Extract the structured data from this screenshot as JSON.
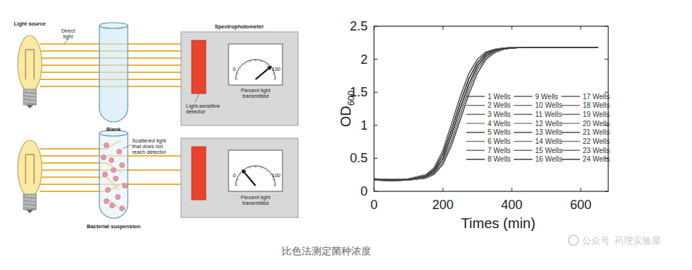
{
  "chart_data": {
    "type": "line",
    "x_label": "Times (min)",
    "y_label": {
      "text": "OD",
      "subscript": "600"
    },
    "x": [
      0,
      50,
      100,
      150,
      175,
      200,
      225,
      250,
      275,
      300,
      325,
      350,
      375,
      400,
      450,
      500,
      550,
      600,
      650
    ],
    "xlim": [
      0,
      680
    ],
    "ylim": [
      0,
      2.5
    ],
    "xticks": [
      0,
      200,
      400,
      600
    ],
    "yticks": [
      0,
      0.5,
      1,
      1.5,
      2,
      2.5
    ],
    "legend": "right",
    "series": [
      {
        "name": "1 Wells",
        "color": "#4d4d4d",
        "values": [
          0.18,
          0.17,
          0.18,
          0.22,
          0.3,
          0.5,
          0.85,
          1.25,
          1.62,
          1.9,
          2.06,
          2.13,
          2.16,
          2.17,
          2.18,
          2.18,
          2.18,
          2.18,
          2.18
        ]
      },
      {
        "name": "2 Wells",
        "color": "#6e6e6e",
        "values": [
          0.19,
          0.18,
          0.19,
          0.25,
          0.36,
          0.62,
          1.02,
          1.43,
          1.78,
          2.0,
          2.11,
          2.15,
          2.17,
          2.18,
          2.18,
          2.18,
          2.18,
          2.18,
          2.18
        ]
      },
      {
        "name": "3 Wells",
        "color": "#5a5a5a",
        "values": [
          0.17,
          0.16,
          0.17,
          0.2,
          0.26,
          0.41,
          0.7,
          1.08,
          1.47,
          1.79,
          2.0,
          2.1,
          2.15,
          2.17,
          2.18,
          2.18,
          2.18,
          2.18,
          2.18
        ]
      },
      {
        "name": "4 Wells",
        "color": "#808080",
        "values": [
          0.18,
          0.17,
          0.18,
          0.23,
          0.33,
          0.56,
          0.93,
          1.34,
          1.7,
          1.95,
          2.09,
          2.14,
          2.16,
          2.17,
          2.18,
          2.18,
          2.18,
          2.18,
          2.18
        ]
      },
      {
        "name": "5 Wells",
        "color": "#3f3f3f",
        "values": [
          0.18,
          0.17,
          0.17,
          0.21,
          0.28,
          0.45,
          0.77,
          1.16,
          1.55,
          1.85,
          2.03,
          2.12,
          2.15,
          2.17,
          2.18,
          2.18,
          2.18,
          2.18,
          2.18
        ]
      },
      {
        "name": "6 Wells",
        "color": "#737373",
        "values": [
          0.18,
          0.17,
          0.18,
          0.22,
          0.3,
          0.5,
          0.85,
          1.25,
          1.62,
          1.9,
          2.06,
          2.13,
          2.16,
          2.17,
          2.18,
          2.18,
          2.18,
          2.18,
          2.18
        ]
      },
      {
        "name": "7 Wells",
        "color": "#606060",
        "values": [
          0.19,
          0.18,
          0.19,
          0.25,
          0.36,
          0.62,
          1.02,
          1.43,
          1.78,
          2.0,
          2.11,
          2.15,
          2.17,
          2.18,
          2.18,
          2.18,
          2.18,
          2.18,
          2.18
        ]
      },
      {
        "name": "8 Wells",
        "color": "#2b2b2b",
        "values": [
          0.17,
          0.16,
          0.17,
          0.2,
          0.26,
          0.41,
          0.7,
          1.08,
          1.47,
          1.79,
          2.0,
          2.1,
          2.15,
          2.17,
          2.18,
          2.18,
          2.18,
          2.18,
          2.18
        ]
      },
      {
        "name": "9 Wells",
        "color": "#4d4d4d",
        "values": [
          0.18,
          0.17,
          0.18,
          0.23,
          0.33,
          0.56,
          0.93,
          1.34,
          1.7,
          1.95,
          2.09,
          2.14,
          2.16,
          2.17,
          2.18,
          2.18,
          2.18,
          2.18,
          2.18
        ]
      },
      {
        "name": "10 Wells",
        "color": "#6e6e6e",
        "values": [
          0.18,
          0.17,
          0.17,
          0.21,
          0.28,
          0.45,
          0.77,
          1.16,
          1.55,
          1.85,
          2.03,
          2.12,
          2.15,
          2.17,
          2.18,
          2.18,
          2.18,
          2.18,
          2.18
        ]
      },
      {
        "name": "11 Wells",
        "color": "#5a5a5a",
        "values": [
          0.18,
          0.17,
          0.18,
          0.22,
          0.3,
          0.5,
          0.85,
          1.25,
          1.62,
          1.9,
          2.06,
          2.13,
          2.16,
          2.17,
          2.18,
          2.18,
          2.18,
          2.18,
          2.18
        ]
      },
      {
        "name": "12 Wells",
        "color": "#808080",
        "values": [
          0.19,
          0.18,
          0.19,
          0.25,
          0.36,
          0.62,
          1.02,
          1.43,
          1.78,
          2.0,
          2.11,
          2.15,
          2.17,
          2.18,
          2.18,
          2.18,
          2.18,
          2.18,
          2.18
        ]
      },
      {
        "name": "13 Wells",
        "color": "#3f3f3f",
        "values": [
          0.17,
          0.16,
          0.17,
          0.2,
          0.26,
          0.41,
          0.7,
          1.08,
          1.47,
          1.79,
          2.0,
          2.1,
          2.15,
          2.17,
          2.18,
          2.18,
          2.18,
          2.18,
          2.18
        ]
      },
      {
        "name": "14 Wells",
        "color": "#737373",
        "values": [
          0.18,
          0.17,
          0.18,
          0.23,
          0.33,
          0.56,
          0.93,
          1.34,
          1.7,
          1.95,
          2.09,
          2.14,
          2.16,
          2.17,
          2.18,
          2.18,
          2.18,
          2.18,
          2.18
        ]
      },
      {
        "name": "15 Wells",
        "color": "#606060",
        "values": [
          0.18,
          0.17,
          0.17,
          0.21,
          0.28,
          0.45,
          0.77,
          1.16,
          1.55,
          1.85,
          2.03,
          2.12,
          2.15,
          2.17,
          2.18,
          2.18,
          2.18,
          2.18,
          2.18
        ]
      },
      {
        "name": "16 Wells",
        "color": "#2b2b2b",
        "values": [
          0.18,
          0.17,
          0.18,
          0.22,
          0.3,
          0.5,
          0.85,
          1.25,
          1.62,
          1.9,
          2.06,
          2.13,
          2.16,
          2.17,
          2.18,
          2.18,
          2.18,
          2.18,
          2.18
        ]
      },
      {
        "name": "17 Wells",
        "color": "#4d4d4d",
        "values": [
          0.19,
          0.18,
          0.19,
          0.25,
          0.36,
          0.62,
          1.02,
          1.43,
          1.78,
          2.0,
          2.11,
          2.15,
          2.17,
          2.18,
          2.18,
          2.18,
          2.18,
          2.18,
          2.18
        ]
      },
      {
        "name": "18 Wells",
        "color": "#6e6e6e",
        "values": [
          0.17,
          0.16,
          0.17,
          0.2,
          0.26,
          0.41,
          0.7,
          1.08,
          1.47,
          1.79,
          2.0,
          2.1,
          2.15,
          2.17,
          2.18,
          2.18,
          2.18,
          2.18,
          2.18
        ]
      },
      {
        "name": "19 Wells",
        "color": "#5a5a5a",
        "values": [
          0.18,
          0.17,
          0.18,
          0.23,
          0.33,
          0.56,
          0.93,
          1.34,
          1.7,
          1.95,
          2.09,
          2.14,
          2.16,
          2.17,
          2.18,
          2.18,
          2.18,
          2.18,
          2.18
        ]
      },
      {
        "name": "20 Wells",
        "color": "#808080",
        "values": [
          0.18,
          0.17,
          0.17,
          0.21,
          0.28,
          0.45,
          0.77,
          1.16,
          1.55,
          1.85,
          2.03,
          2.12,
          2.15,
          2.17,
          2.18,
          2.18,
          2.18,
          2.18,
          2.18
        ]
      },
      {
        "name": "21 Wells",
        "color": "#3f3f3f",
        "values": [
          0.18,
          0.17,
          0.18,
          0.22,
          0.3,
          0.5,
          0.85,
          1.25,
          1.62,
          1.9,
          2.06,
          2.13,
          2.16,
          2.17,
          2.18,
          2.18,
          2.18,
          2.18,
          2.18
        ]
      },
      {
        "name": "22 Wells",
        "color": "#737373",
        "values": [
          0.19,
          0.18,
          0.19,
          0.25,
          0.36,
          0.62,
          1.02,
          1.43,
          1.78,
          2.0,
          2.11,
          2.15,
          2.17,
          2.18,
          2.18,
          2.18,
          2.18,
          2.18,
          2.18
        ]
      },
      {
        "name": "23 Wells",
        "color": "#606060",
        "values": [
          0.17,
          0.16,
          0.17,
          0.2,
          0.26,
          0.41,
          0.7,
          1.08,
          1.47,
          1.79,
          2.0,
          2.1,
          2.15,
          2.17,
          2.18,
          2.18,
          2.18,
          2.18,
          2.18
        ]
      },
      {
        "name": "24 Wells",
        "color": "#2b2b2b",
        "values": [
          0.18,
          0.17,
          0.18,
          0.23,
          0.33,
          0.56,
          0.93,
          1.34,
          1.7,
          1.95,
          2.09,
          2.14,
          2.16,
          2.17,
          2.18,
          2.18,
          2.18,
          2.18,
          2.18
        ]
      }
    ]
  },
  "diagram": {
    "light_source": "Light source",
    "direct_light": [
      "Direct",
      "light"
    ],
    "blank": "Blank",
    "spectrophotometer": "Spectrophotometer",
    "detector": [
      "Light-sensitive",
      "detector"
    ],
    "meter_label": [
      "Percent light",
      "transmitted"
    ],
    "meter_min": "0",
    "meter_max": "100",
    "scattered": [
      "Scattered light",
      "that does not",
      "reach detector"
    ],
    "suspension": "Bacterial suspension"
  },
  "caption": "比色法测定菌种浓度",
  "watermark": {
    "account": "公众号",
    "name": "药理实验屋"
  }
}
